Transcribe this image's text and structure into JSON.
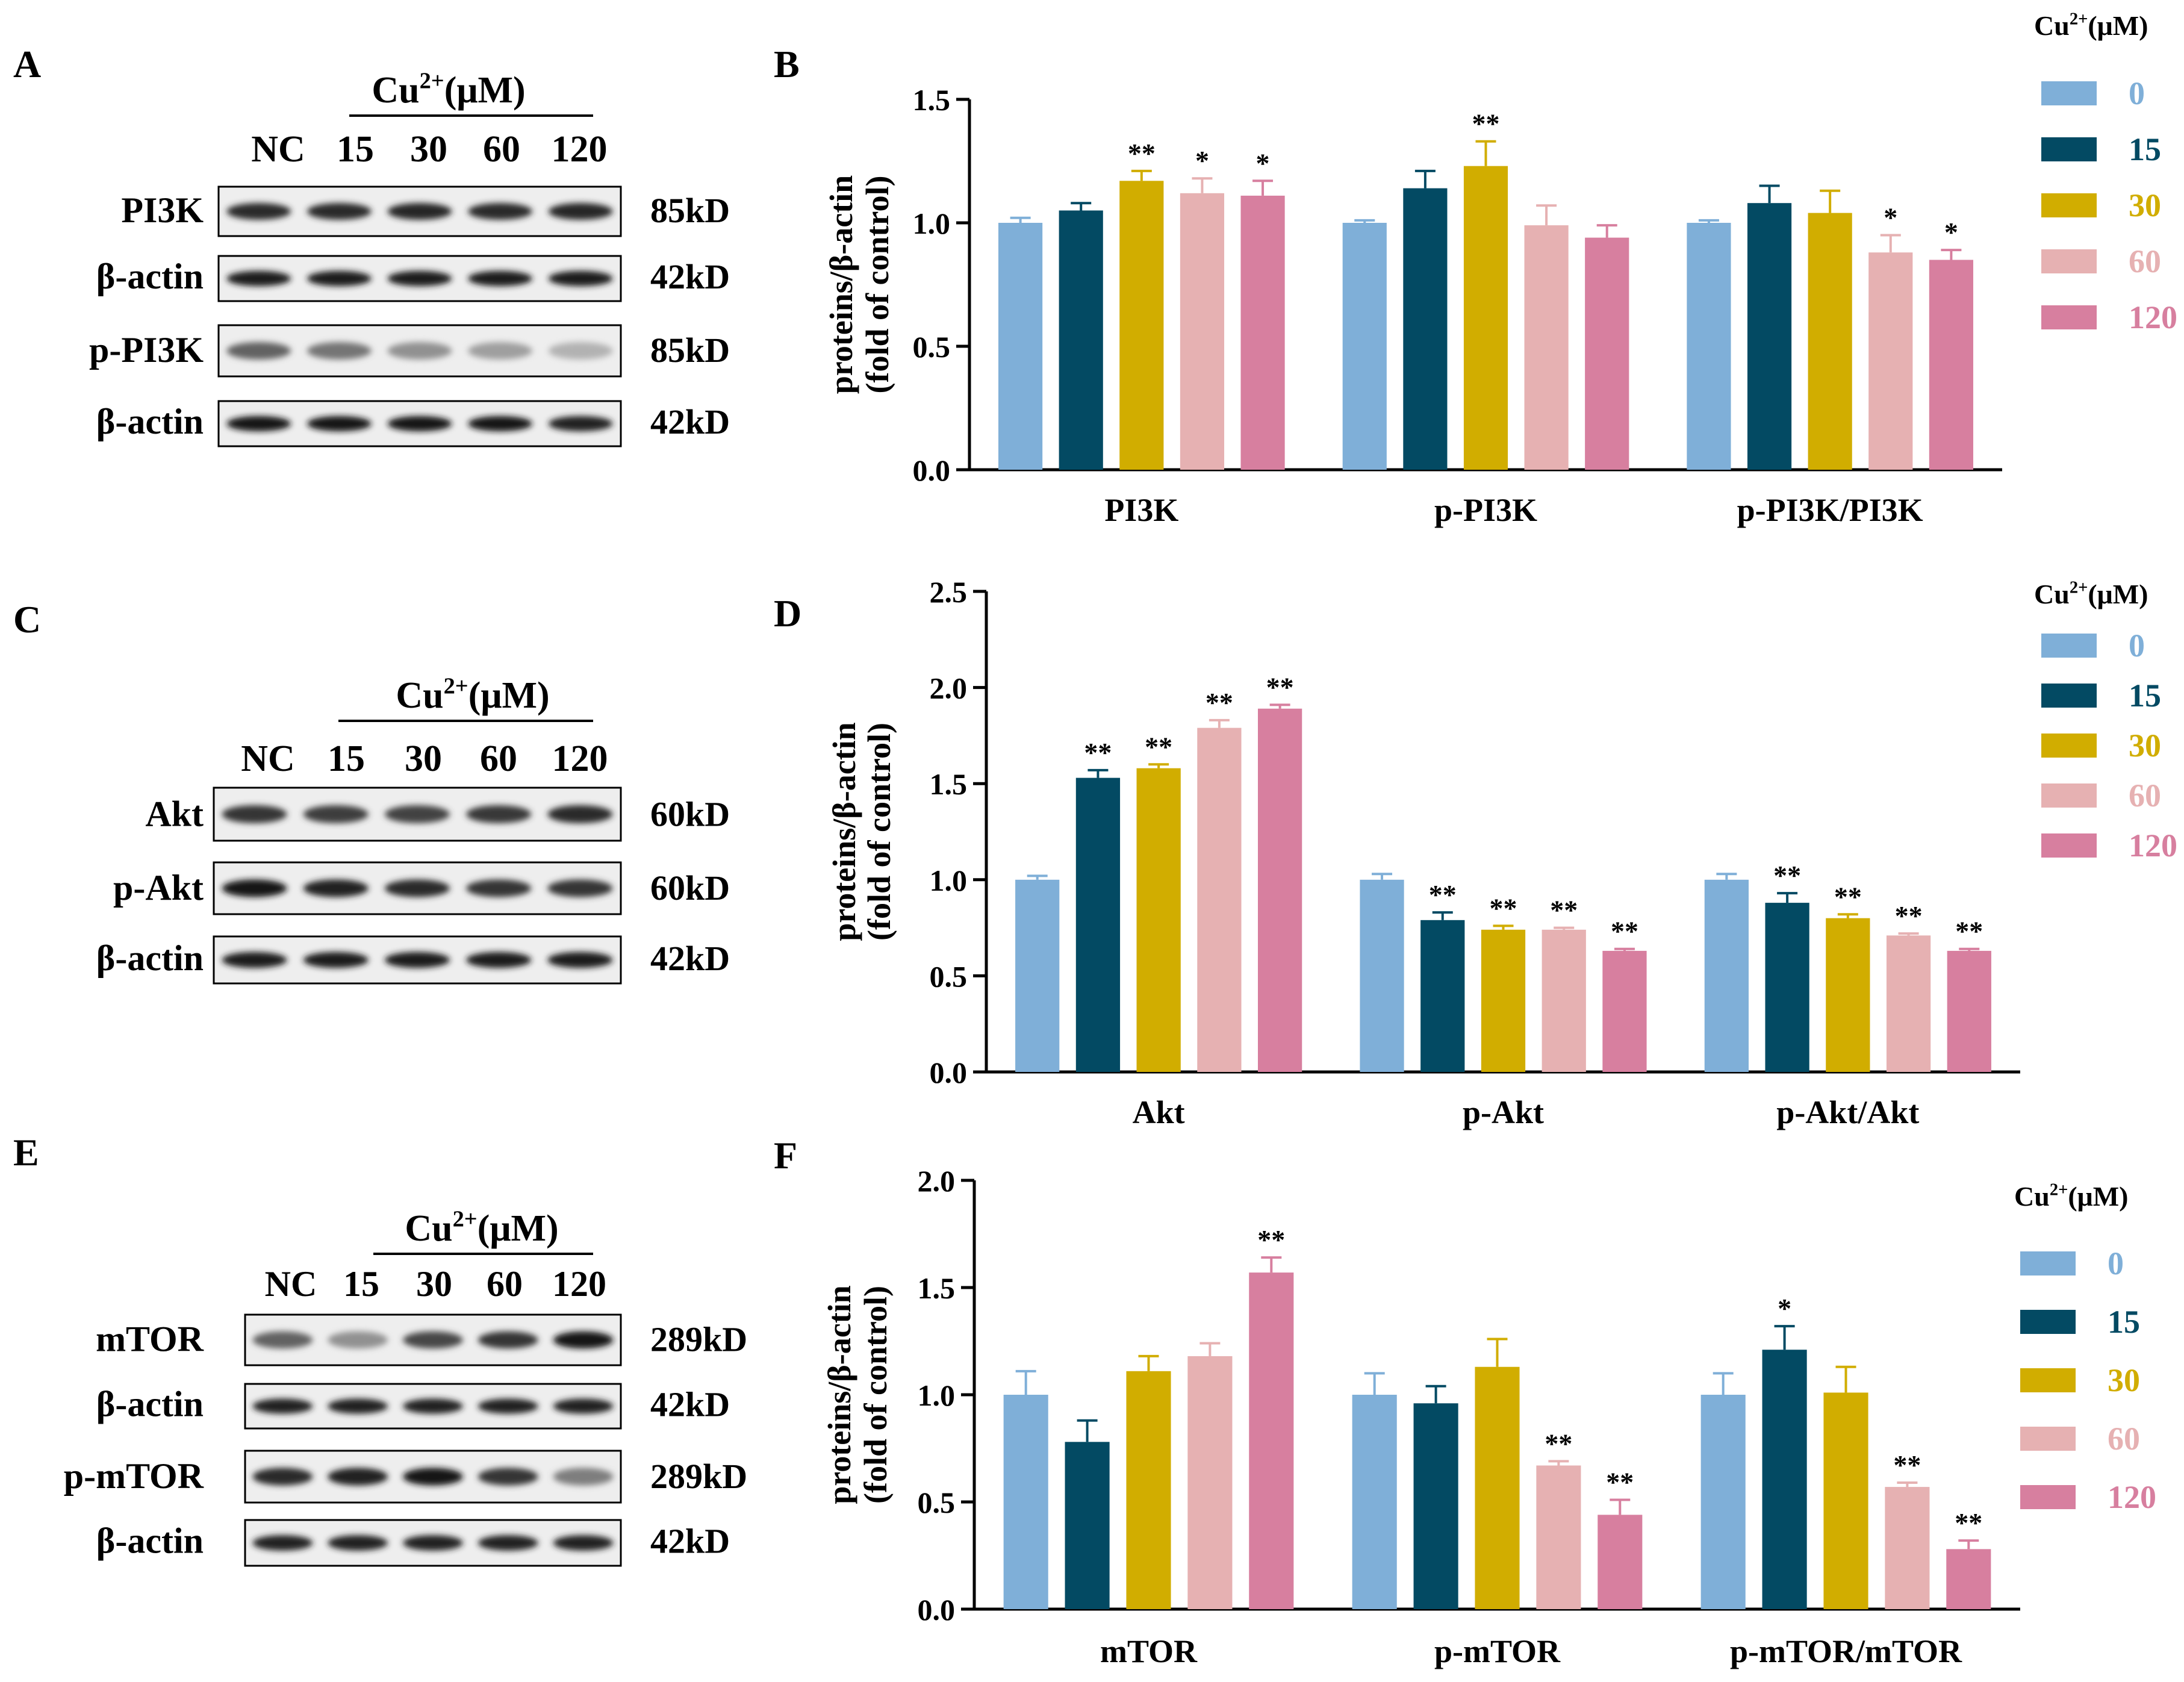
{
  "colors": [
    "#7fafd8",
    "#034a63",
    "#d1ad00",
    "#e6b1b2",
    "#d77f9f"
  ],
  "blots": [
    {
      "panel": "A",
      "treatment": "Cu",
      "superscript": "2+",
      "unit": "(μM)",
      "lanes": [
        "NC",
        "15",
        "30",
        "60",
        "120"
      ],
      "rows": [
        {
          "label": "PI3K",
          "size": "85kD",
          "intensity": [
            0.85,
            0.85,
            0.87,
            0.85,
            0.87
          ]
        },
        {
          "label": "β-actin",
          "size": "42kD",
          "intensity": [
            0.92,
            0.92,
            0.92,
            0.92,
            0.92
          ]
        },
        {
          "label": "p-PI3K",
          "size": "85kD",
          "intensity": [
            0.55,
            0.45,
            0.3,
            0.22,
            0.12
          ]
        },
        {
          "label": "β-actin",
          "size": "42kD",
          "intensity": [
            0.95,
            0.95,
            0.95,
            0.95,
            0.9
          ]
        }
      ]
    },
    {
      "panel": "C",
      "treatment": "Cu",
      "superscript": "2+",
      "unit": "(μM)",
      "lanes": [
        "NC",
        "15",
        "30",
        "60",
        "120"
      ],
      "rows": [
        {
          "label": "Akt",
          "size": "60kD",
          "intensity": [
            0.8,
            0.75,
            0.72,
            0.78,
            0.85
          ]
        },
        {
          "label": "p-Akt",
          "size": "60kD",
          "intensity": [
            0.95,
            0.9,
            0.85,
            0.8,
            0.8
          ]
        },
        {
          "label": "β-actin",
          "size": "42kD",
          "intensity": [
            0.92,
            0.92,
            0.92,
            0.92,
            0.92
          ]
        }
      ]
    },
    {
      "panel": "E",
      "treatment": "Cu",
      "superscript": "2+",
      "unit": "(μM)",
      "lanes": [
        "NC",
        "15",
        "30",
        "60",
        "120"
      ],
      "rows": [
        {
          "label": "mTOR",
          "size": "289kD",
          "intensity": [
            0.55,
            0.3,
            0.7,
            0.8,
            0.95
          ]
        },
        {
          "label": "β-actin",
          "size": "42kD",
          "intensity": [
            0.9,
            0.9,
            0.9,
            0.9,
            0.9
          ]
        },
        {
          "label": "p-mTOR",
          "size": "289kD",
          "intensity": [
            0.85,
            0.9,
            0.95,
            0.8,
            0.4
          ]
        },
        {
          "label": "β-actin",
          "size": "42kD",
          "intensity": [
            0.9,
            0.9,
            0.9,
            0.9,
            0.9
          ]
        }
      ]
    }
  ],
  "chart_data": [
    {
      "panel": "B",
      "type": "bar",
      "ylabel_line1": "proteins/β-actin",
      "ylabel_line2": "(fold of control)",
      "ylim": [
        0,
        1.5
      ],
      "yticks": [
        "0.0",
        "0.5",
        "1.0",
        "1.5"
      ],
      "categories": [
        "PI3K",
        "p-PI3K",
        "p-PI3K/PI3K"
      ],
      "legend_title": "Cu",
      "legend_superscript": "2+",
      "legend_unit": "(μM)",
      "series": [
        {
          "name": "0",
          "values": [
            1.0,
            1.0,
            1.0
          ],
          "errors": [
            0.02,
            0.01,
            0.01
          ],
          "sig": [
            "",
            "",
            ""
          ]
        },
        {
          "name": "15",
          "values": [
            1.05,
            1.14,
            1.08
          ],
          "errors": [
            0.03,
            0.07,
            0.07
          ],
          "sig": [
            "",
            "",
            ""
          ]
        },
        {
          "name": "30",
          "values": [
            1.17,
            1.23,
            1.04
          ],
          "errors": [
            0.04,
            0.1,
            0.09
          ],
          "sig": [
            "**",
            "**",
            ""
          ]
        },
        {
          "name": "60",
          "values": [
            1.12,
            0.99,
            0.88
          ],
          "errors": [
            0.06,
            0.08,
            0.07
          ],
          "sig": [
            "*",
            "",
            "*"
          ]
        },
        {
          "name": "120",
          "values": [
            1.11,
            0.94,
            0.85
          ],
          "errors": [
            0.06,
            0.05,
            0.04
          ],
          "sig": [
            "*",
            "",
            "*"
          ]
        }
      ]
    },
    {
      "panel": "D",
      "type": "bar",
      "ylabel_line1": "proteins/β-actin",
      "ylabel_line2": "(fold of control)",
      "ylim": [
        0,
        2.5
      ],
      "yticks": [
        "0.0",
        "0.5",
        "1.0",
        "1.5",
        "2.0",
        "2.5"
      ],
      "categories": [
        "Akt",
        "p-Akt",
        "p-Akt/Akt"
      ],
      "legend_title": "Cu",
      "legend_superscript": "2+",
      "legend_unit": "(μM)",
      "series": [
        {
          "name": "0",
          "values": [
            1.0,
            1.0,
            1.0
          ],
          "errors": [
            0.02,
            0.03,
            0.03
          ],
          "sig": [
            "",
            "",
            ""
          ]
        },
        {
          "name": "15",
          "values": [
            1.53,
            0.79,
            0.88
          ],
          "errors": [
            0.04,
            0.04,
            0.05
          ],
          "sig": [
            "**",
            "**",
            "**"
          ]
        },
        {
          "name": "30",
          "values": [
            1.58,
            0.74,
            0.8
          ],
          "errors": [
            0.02,
            0.02,
            0.02
          ],
          "sig": [
            "**",
            "**",
            "**"
          ]
        },
        {
          "name": "60",
          "values": [
            1.79,
            0.74,
            0.71
          ],
          "errors": [
            0.04,
            0.01,
            0.01
          ],
          "sig": [
            "**",
            "**",
            "**"
          ]
        },
        {
          "name": "120",
          "values": [
            1.89,
            0.63,
            0.63
          ],
          "errors": [
            0.02,
            0.01,
            0.01
          ],
          "sig": [
            "**",
            "**",
            "**"
          ]
        }
      ]
    },
    {
      "panel": "F",
      "type": "bar",
      "ylabel_line1": "proteins/β-actin",
      "ylabel_line2": "(fold of control)",
      "ylim": [
        0,
        2.0
      ],
      "yticks": [
        "0.0",
        "0.5",
        "1.0",
        "1.5",
        "2.0"
      ],
      "categories": [
        "mTOR",
        "p-mTOR",
        "p-mTOR/mTOR"
      ],
      "legend_title": "Cu",
      "legend_superscript": "2+",
      "legend_unit": "(μM)",
      "series": [
        {
          "name": "0",
          "values": [
            1.0,
            1.0,
            1.0
          ],
          "errors": [
            0.11,
            0.1,
            0.1
          ],
          "sig": [
            "",
            "",
            ""
          ]
        },
        {
          "name": "15",
          "values": [
            0.78,
            0.96,
            1.21
          ],
          "errors": [
            0.1,
            0.08,
            0.11
          ],
          "sig": [
            "",
            "",
            "*"
          ]
        },
        {
          "name": "30",
          "values": [
            1.11,
            1.13,
            1.01
          ],
          "errors": [
            0.07,
            0.13,
            0.12
          ],
          "sig": [
            "",
            "",
            ""
          ]
        },
        {
          "name": "60",
          "values": [
            1.18,
            0.67,
            0.57
          ],
          "errors": [
            0.06,
            0.02,
            0.02
          ],
          "sig": [
            "",
            "**",
            "**"
          ]
        },
        {
          "name": "120",
          "values": [
            1.57,
            0.44,
            0.28
          ],
          "errors": [
            0.07,
            0.07,
            0.04
          ],
          "sig": [
            "**",
            "**",
            "**"
          ]
        }
      ]
    }
  ]
}
